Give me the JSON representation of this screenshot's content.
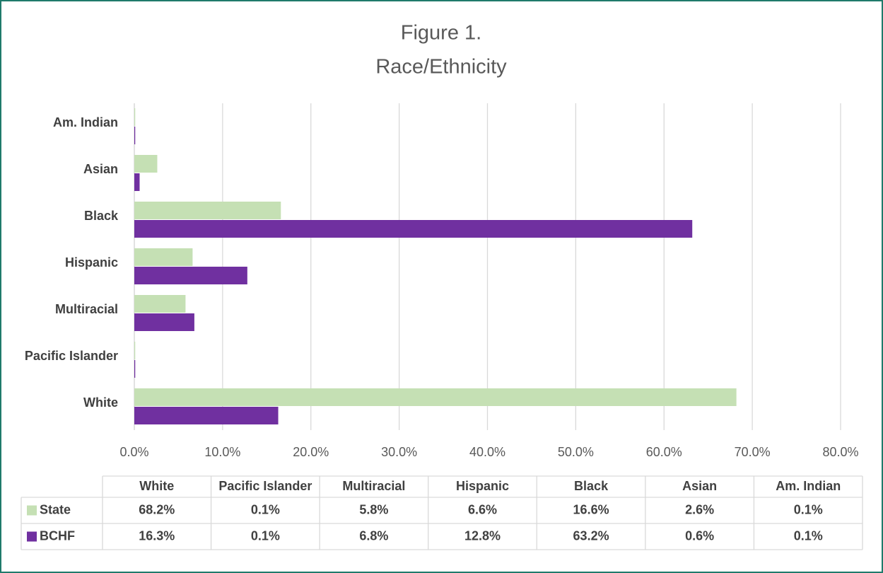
{
  "chart_data": {
    "type": "hbar",
    "title": "Figure 1.",
    "subtitle": "Race/Ethnicity",
    "categories": [
      "White",
      "Pacific Islander",
      "Multiracial",
      "Hispanic",
      "Black",
      "Asian",
      "Am. Indian"
    ],
    "series": [
      {
        "name": "State",
        "color": "#c5e0b4",
        "values": [
          68.2,
          0.1,
          5.8,
          6.6,
          16.6,
          2.6,
          0.1
        ],
        "value_labels": [
          "68.2%",
          "0.1%",
          "5.8%",
          "6.6%",
          "16.6%",
          "2.6%",
          "0.1%"
        ]
      },
      {
        "name": "BCHF",
        "color": "#7030a0",
        "values": [
          16.3,
          0.1,
          6.8,
          12.8,
          63.2,
          0.6,
          0.1
        ],
        "value_labels": [
          "16.3%",
          "0.1%",
          "6.8%",
          "12.8%",
          "63.2%",
          "0.6%",
          "0.1%"
        ]
      }
    ],
    "xlim": [
      0,
      80
    ],
    "xticks": [
      {
        "value": 0,
        "label": "0.0%"
      },
      {
        "value": 10,
        "label": "10.0%"
      },
      {
        "value": 20,
        "label": "20.0%"
      },
      {
        "value": 30,
        "label": "30.0%"
      },
      {
        "value": 40,
        "label": "40.0%"
      },
      {
        "value": 50,
        "label": "50.0%"
      },
      {
        "value": 60,
        "label": "60.0%"
      },
      {
        "value": 70,
        "label": "70.0%"
      },
      {
        "value": 80,
        "label": "80.0%"
      }
    ],
    "grid": true,
    "data_table": true
  }
}
